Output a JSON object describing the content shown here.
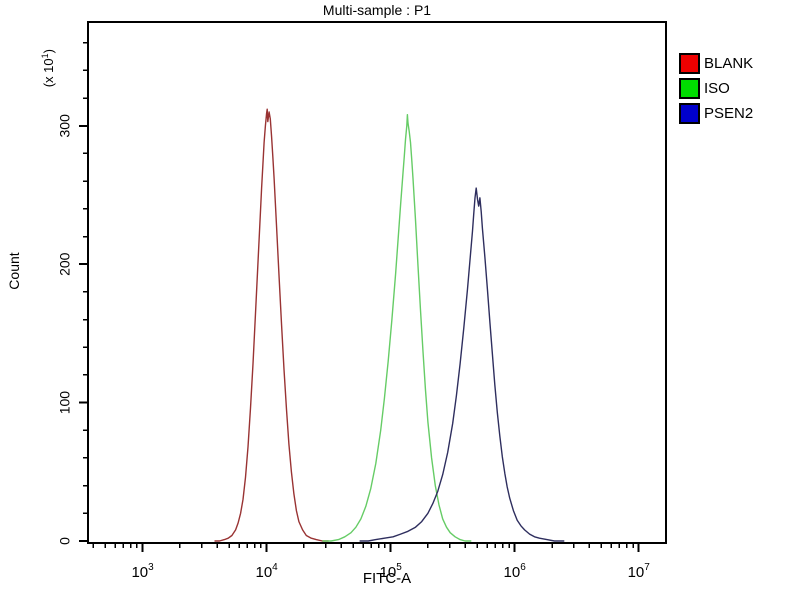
{
  "title": "Multi-sample : P1",
  "axes": {
    "x": {
      "label": "FITC-A",
      "scale": "log10",
      "base_text": "10",
      "major_exponents": [
        3,
        4,
        5,
        6,
        7
      ],
      "log_range": [
        2.56,
        7.22
      ]
    },
    "y": {
      "label": "Count",
      "multiplier_prefix": "(x 10",
      "multiplier_exponent": "1",
      "multiplier_suffix": ")",
      "range": [
        0,
        375
      ],
      "major_step": 100,
      "minor_step": 20,
      "major_tick_labels": [
        "0",
        "100",
        "200",
        "300"
      ]
    }
  },
  "legend": {
    "items": [
      {
        "label": "BLANK",
        "color": "#EE0000"
      },
      {
        "label": "ISO",
        "color": "#00DD00"
      },
      {
        "label": "PSEN2",
        "color": "#0000CC"
      }
    ]
  },
  "chart_data": {
    "type": "line",
    "title": "Multi-sample : P1",
    "xlabel": "FITC-A",
    "ylabel": "Count (x 10^1)",
    "x_scale": "log10",
    "x_range_log10": [
      2.56,
      7.22
    ],
    "y_range": [
      0,
      375
    ],
    "grid": false,
    "legend_position": "outside-top-right",
    "series": [
      {
        "name": "BLANK",
        "color": "#993333",
        "peak_x": 10000,
        "peak_count": 312,
        "points_log10x_count": [
          [
            3.58,
            0
          ],
          [
            3.62,
            0
          ],
          [
            3.66,
            1
          ],
          [
            3.69,
            2
          ],
          [
            3.72,
            4
          ],
          [
            3.75,
            8
          ],
          [
            3.77,
            13
          ],
          [
            3.79,
            20
          ],
          [
            3.81,
            30
          ],
          [
            3.83,
            46
          ],
          [
            3.85,
            68
          ],
          [
            3.87,
            96
          ],
          [
            3.89,
            128
          ],
          [
            3.91,
            163
          ],
          [
            3.93,
            200
          ],
          [
            3.95,
            237
          ],
          [
            3.96,
            255
          ],
          [
            3.97,
            272
          ],
          [
            3.98,
            288
          ],
          [
            3.99,
            300
          ],
          [
            4.0,
            309
          ],
          [
            4.005,
            312
          ],
          [
            4.01,
            303
          ],
          [
            4.02,
            310
          ],
          [
            4.03,
            305
          ],
          [
            4.04,
            292
          ],
          [
            4.05,
            278
          ],
          [
            4.06,
            262
          ],
          [
            4.08,
            228
          ],
          [
            4.1,
            192
          ],
          [
            4.12,
            157
          ],
          [
            4.14,
            124
          ],
          [
            4.16,
            95
          ],
          [
            4.18,
            70
          ],
          [
            4.2,
            50
          ],
          [
            4.22,
            34
          ],
          [
            4.24,
            22
          ],
          [
            4.26,
            14
          ],
          [
            4.29,
            8
          ],
          [
            4.32,
            4
          ],
          [
            4.36,
            2
          ],
          [
            4.4,
            1
          ],
          [
            4.45,
            0
          ],
          [
            4.5,
            0
          ]
        ]
      },
      {
        "name": "ISO",
        "color": "#66CC66",
        "peak_x": 135000,
        "peak_count": 308,
        "points_log10x_count": [
          [
            4.45,
            0
          ],
          [
            4.52,
            0
          ],
          [
            4.58,
            1
          ],
          [
            4.63,
            3
          ],
          [
            4.68,
            6
          ],
          [
            4.72,
            10
          ],
          [
            4.76,
            16
          ],
          [
            4.8,
            25
          ],
          [
            4.84,
            38
          ],
          [
            4.88,
            56
          ],
          [
            4.92,
            80
          ],
          [
            4.95,
            103
          ],
          [
            4.98,
            130
          ],
          [
            5.01,
            160
          ],
          [
            5.04,
            193
          ],
          [
            5.06,
            218
          ],
          [
            5.08,
            243
          ],
          [
            5.1,
            266
          ],
          [
            5.11,
            278
          ],
          [
            5.12,
            290
          ],
          [
            5.13,
            300
          ],
          [
            5.135,
            308
          ],
          [
            5.14,
            302
          ],
          [
            5.15,
            296
          ],
          [
            5.16,
            288
          ],
          [
            5.17,
            276
          ],
          [
            5.18,
            262
          ],
          [
            5.2,
            232
          ],
          [
            5.22,
            200
          ],
          [
            5.24,
            168
          ],
          [
            5.26,
            138
          ],
          [
            5.28,
            110
          ],
          [
            5.3,
            86
          ],
          [
            5.33,
            60
          ],
          [
            5.36,
            40
          ],
          [
            5.39,
            26
          ],
          [
            5.42,
            16
          ],
          [
            5.45,
            10
          ],
          [
            5.48,
            6
          ],
          [
            5.52,
            3
          ],
          [
            5.56,
            1
          ],
          [
            5.6,
            0
          ],
          [
            5.65,
            0
          ]
        ]
      },
      {
        "name": "PSEN2",
        "color": "#2E2E5E",
        "peak_x": 480000,
        "peak_count": 255,
        "points_log10x_count": [
          [
            4.75,
            0
          ],
          [
            4.82,
            0
          ],
          [
            4.88,
            1
          ],
          [
            4.95,
            2
          ],
          [
            5.02,
            3
          ],
          [
            5.08,
            5
          ],
          [
            5.14,
            7
          ],
          [
            5.2,
            10
          ],
          [
            5.25,
            14
          ],
          [
            5.3,
            20
          ],
          [
            5.34,
            27
          ],
          [
            5.38,
            36
          ],
          [
            5.42,
            48
          ],
          [
            5.46,
            64
          ],
          [
            5.5,
            85
          ],
          [
            5.53,
            105
          ],
          [
            5.56,
            128
          ],
          [
            5.59,
            154
          ],
          [
            5.62,
            182
          ],
          [
            5.64,
            203
          ],
          [
            5.66,
            224
          ],
          [
            5.67,
            236
          ],
          [
            5.68,
            248
          ],
          [
            5.69,
            255
          ],
          [
            5.7,
            247
          ],
          [
            5.71,
            242
          ],
          [
            5.72,
            248
          ],
          [
            5.73,
            238
          ],
          [
            5.74,
            226
          ],
          [
            5.76,
            205
          ],
          [
            5.78,
            182
          ],
          [
            5.8,
            158
          ],
          [
            5.82,
            135
          ],
          [
            5.84,
            113
          ],
          [
            5.86,
            93
          ],
          [
            5.88,
            76
          ],
          [
            5.9,
            61
          ],
          [
            5.92,
            49
          ],
          [
            5.94,
            39
          ],
          [
            5.96,
            31
          ],
          [
            5.99,
            22
          ],
          [
            6.02,
            15
          ],
          [
            6.05,
            11
          ],
          [
            6.08,
            8
          ],
          [
            6.12,
            5
          ],
          [
            6.16,
            3
          ],
          [
            6.2,
            2
          ],
          [
            6.26,
            1
          ],
          [
            6.32,
            0
          ],
          [
            6.4,
            0
          ]
        ]
      }
    ]
  }
}
